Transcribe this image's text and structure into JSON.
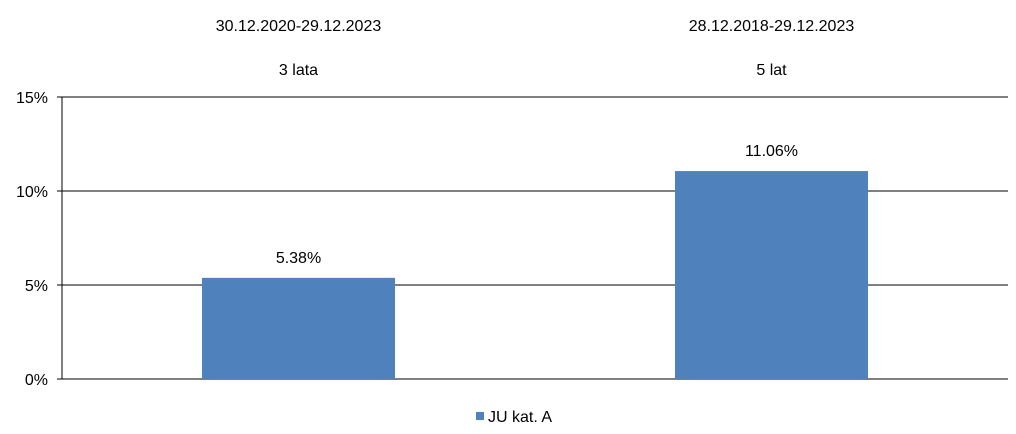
{
  "chart_data": {
    "type": "bar",
    "categories": [
      {
        "period": "30.12.2020-29.12.2023",
        "label": "3 lata"
      },
      {
        "period": "28.12.2018-29.12.2023",
        "label": "5 lat"
      }
    ],
    "series": [
      {
        "name": "JU kat. A",
        "values": [
          5.38,
          11.06
        ],
        "color": "#4F81BD"
      }
    ],
    "data_labels": [
      "5.38%",
      "11.06%"
    ],
    "y_ticks": [
      {
        "value": 0,
        "label": "0%"
      },
      {
        "value": 5,
        "label": "5%"
      },
      {
        "value": 10,
        "label": "10%"
      },
      {
        "value": 15,
        "label": "15%"
      }
    ],
    "ylim": [
      0,
      15
    ],
    "grid": true,
    "legend_position": "bottom",
    "title": "",
    "xlabel": "",
    "ylabel": ""
  }
}
